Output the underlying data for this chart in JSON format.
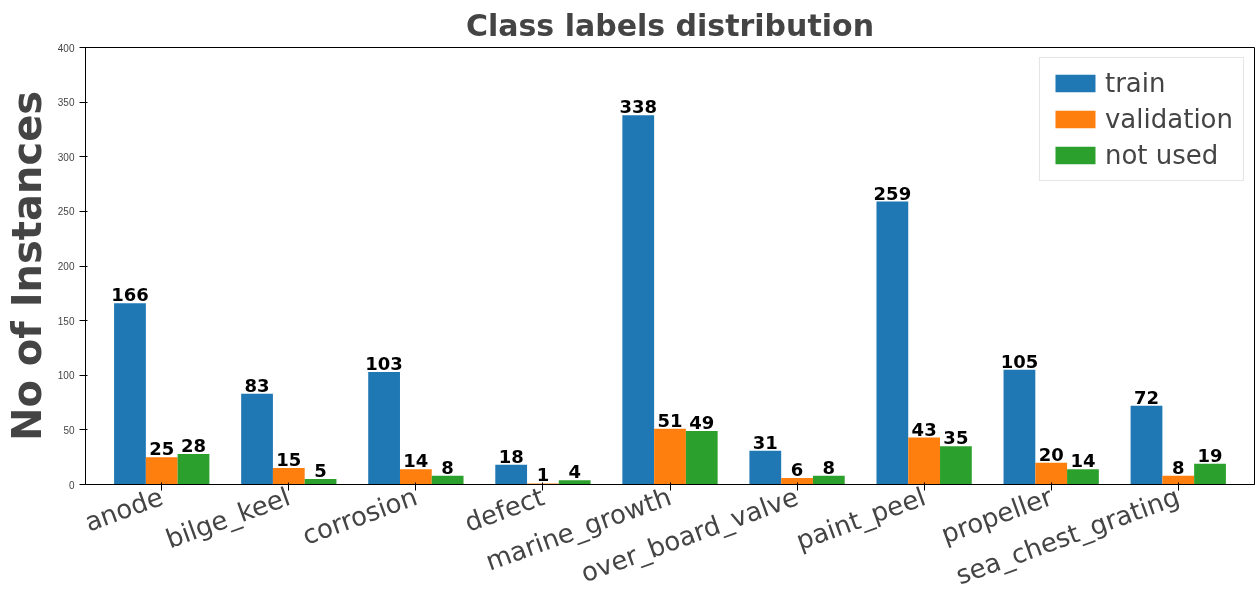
{
  "chart_data": {
    "type": "bar",
    "title": "Class labels distribution",
    "ylabel": "No of Instances",
    "categories": [
      "anode",
      "bilge_keel",
      "corrosion",
      "defect",
      "marine_growth",
      "over_board_valve",
      "paint_peel",
      "propeller",
      "sea_chest_grating"
    ],
    "series": [
      {
        "name": "train",
        "color": "#1f77b4",
        "values": [
          166,
          83,
          103,
          18,
          338,
          31,
          259,
          105,
          72
        ]
      },
      {
        "name": "validation",
        "color": "#ff7f0e",
        "values": [
          25,
          15,
          14,
          1,
          51,
          6,
          43,
          20,
          8
        ]
      },
      {
        "name": "not used",
        "color": "#2ca02c",
        "values": [
          28,
          5,
          8,
          4,
          49,
          8,
          35,
          14,
          19
        ]
      }
    ],
    "ylim": [
      0,
      400
    ],
    "yticks": [
      0,
      50,
      100,
      150,
      200,
      250,
      300,
      350,
      400
    ],
    "grid": false,
    "legend": "top right",
    "data_labels": true
  }
}
